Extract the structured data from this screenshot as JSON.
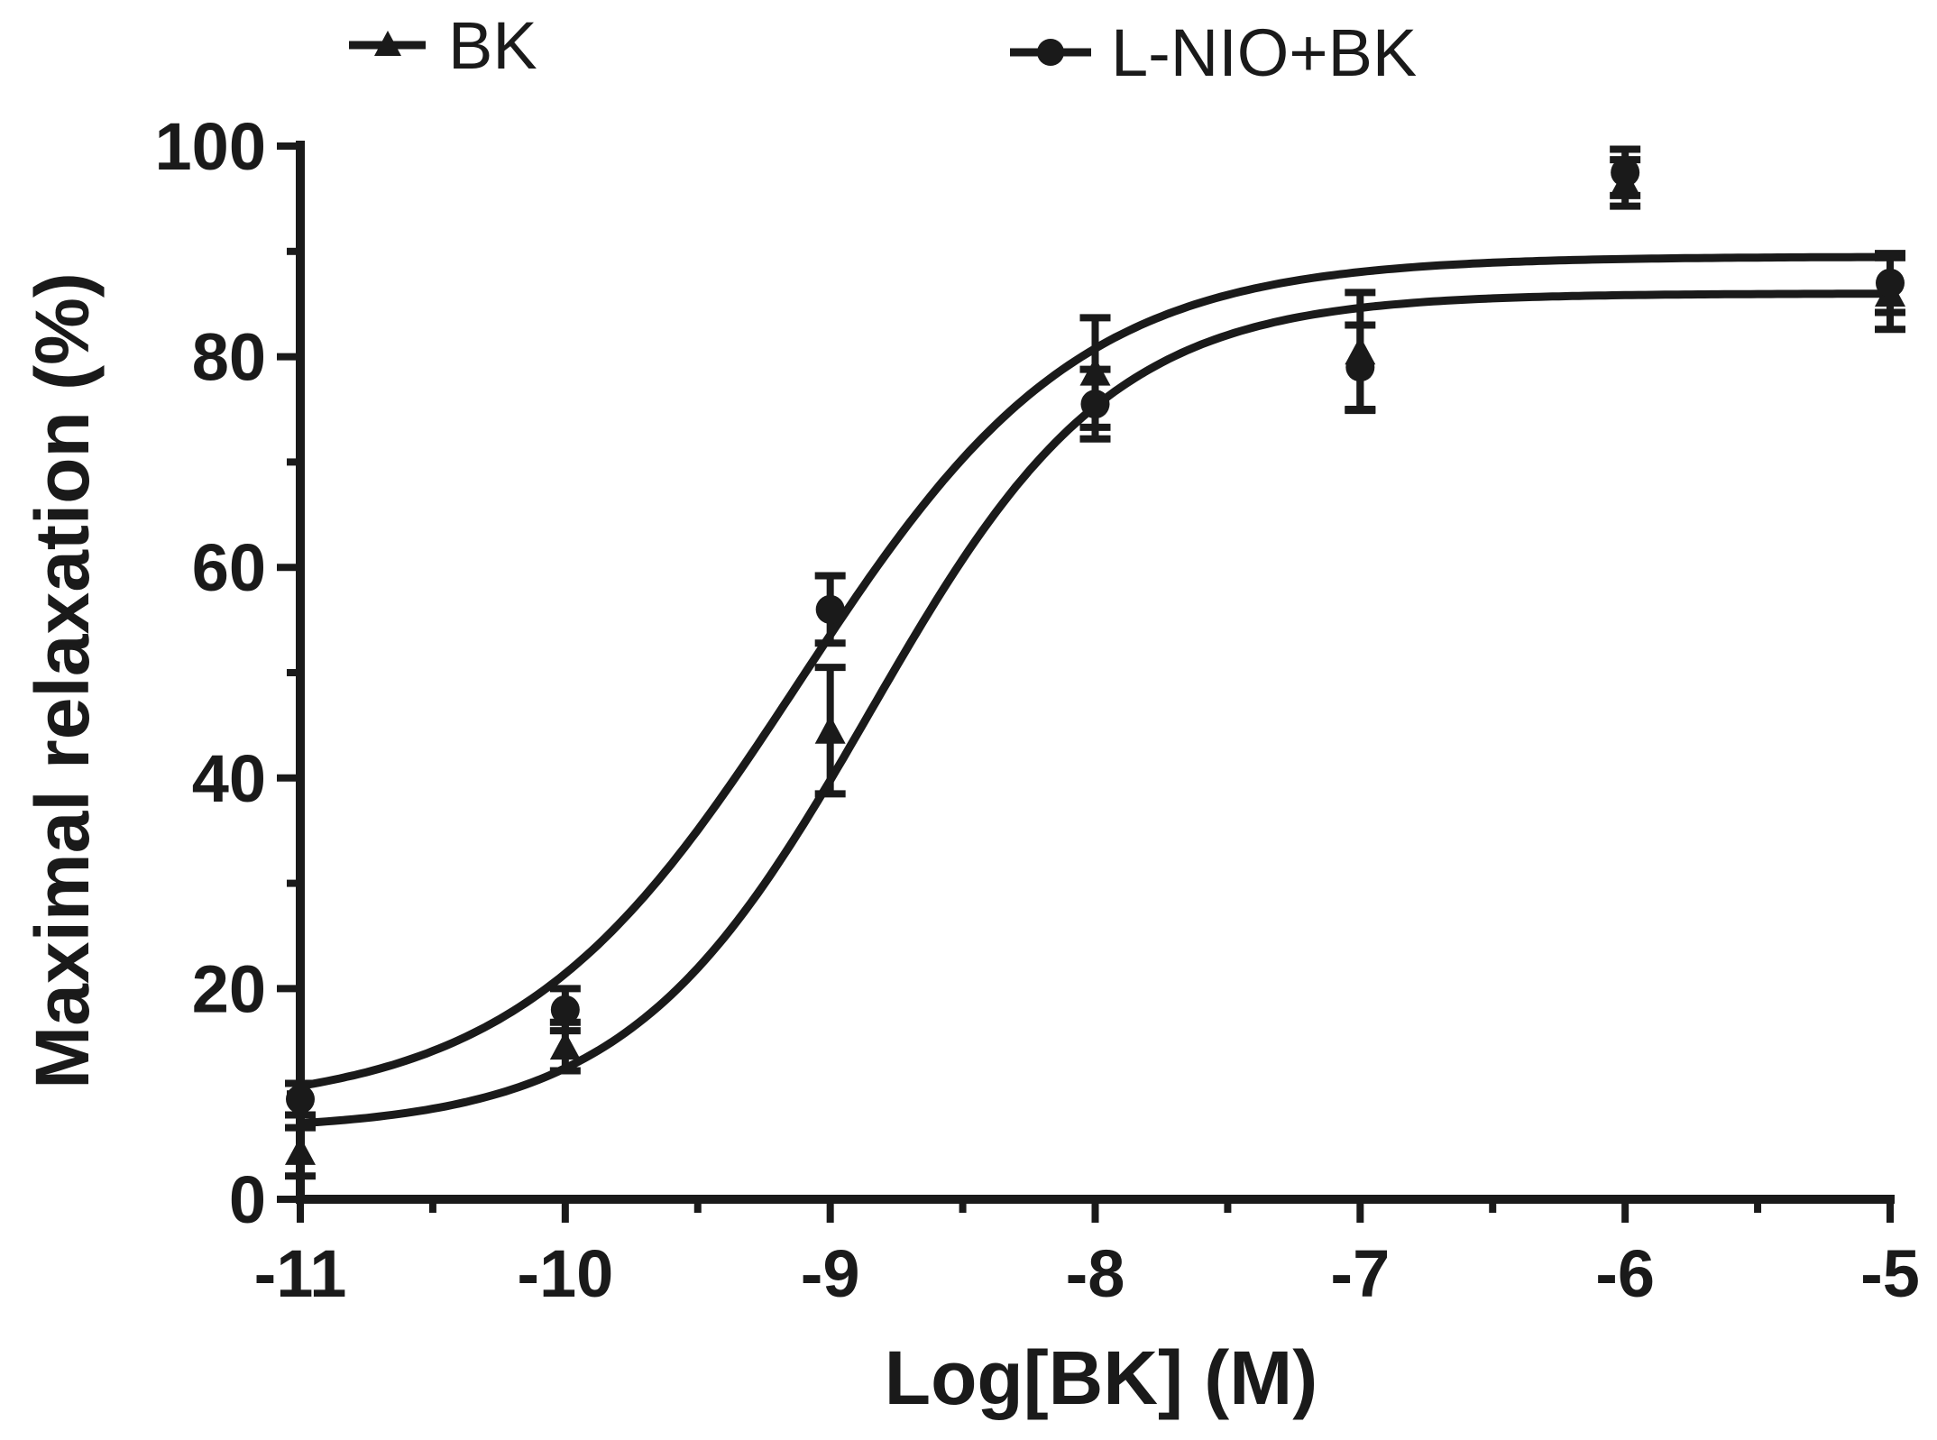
{
  "chart_data": {
    "type": "scatter",
    "title": "",
    "xlabel": "Log[BK] (M)",
    "ylabel": "Maximal relaxation (%)",
    "xlim": [
      -11,
      -5
    ],
    "ylim": [
      0,
      100
    ],
    "xticks": [
      "-11",
      "-10",
      "-9",
      "-8",
      "-7",
      "-6",
      "-5"
    ],
    "yticks": [
      "0",
      "20",
      "40",
      "60",
      "80",
      "100"
    ],
    "grid": false,
    "legend_position": "top",
    "color": "#1a1a1a",
    "series": [
      {
        "name": "BK",
        "marker": "triangle",
        "x": [
          -11,
          -10,
          -9,
          -8,
          -7,
          -6,
          -5
        ],
        "y": [
          4.5,
          14.5,
          44.5,
          78.5,
          80.5,
          96.5,
          86
        ],
        "error": [
          2.3,
          2.3,
          6.0,
          5.2,
          5.6,
          2.2,
          3.4
        ],
        "fit": {
          "bottom": 6.5,
          "top": 86,
          "logEC50": -8.85,
          "hill": 0.95
        }
      },
      {
        "name": "L-NIO+BK",
        "marker": "circle",
        "x": [
          -11,
          -10,
          -9,
          -8,
          -7,
          -6,
          -5
        ],
        "y": [
          9.5,
          18,
          56,
          75.5,
          79,
          97.5,
          87
        ],
        "error": [
          1.5,
          2.0,
          3.2,
          3.3,
          4.0,
          2.2,
          2.8
        ],
        "fit": {
          "bottom": 8.5,
          "top": 89.5,
          "logEC50": -9.12,
          "hill": 0.82
        }
      }
    ]
  }
}
